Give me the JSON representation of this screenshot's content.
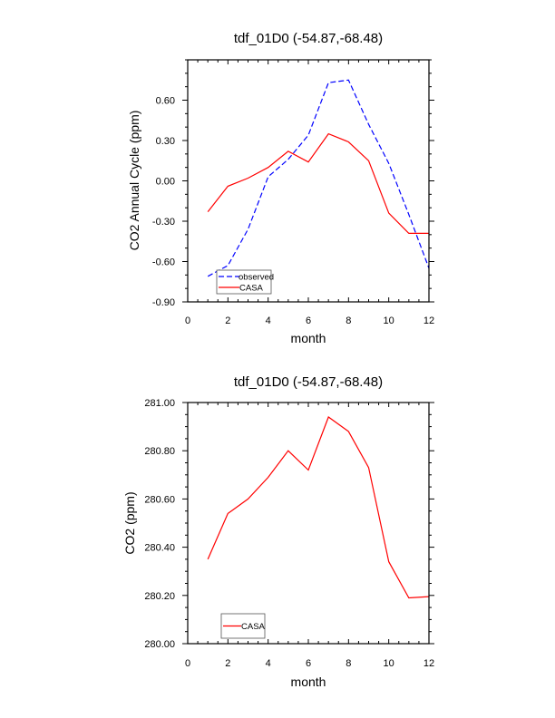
{
  "chart_data": [
    {
      "type": "line",
      "title": "tdf_01D0 (-54.87,-68.48)",
      "xlabel": "month",
      "ylabel": "CO2 Annual Cycle (ppm)",
      "xlim": [
        0,
        12
      ],
      "ylim": [
        -0.9,
        0.9
      ],
      "xticks": [
        0,
        2,
        4,
        6,
        8,
        10,
        12
      ],
      "xtick_labels": [
        "0",
        "2",
        "4",
        "6",
        "8",
        "10",
        "12"
      ],
      "yticks": [
        -0.9,
        -0.6,
        -0.3,
        0.0,
        0.3,
        0.6
      ],
      "ytick_labels": [
        "-0.90",
        "-0.60",
        "-0.30",
        "0.00",
        "0.30",
        "0.60"
      ],
      "x_minor_step": 0.5,
      "y_minor_step": 0.1,
      "grid": false,
      "legend_position": "bottom-left",
      "x": [
        1,
        2,
        3,
        4,
        5,
        6,
        7,
        8,
        9,
        10,
        11,
        12
      ],
      "series": [
        {
          "name": "observed",
          "color": "#0000ff",
          "dash": "dashed",
          "values": [
            -0.71,
            -0.63,
            -0.36,
            0.03,
            0.16,
            0.34,
            0.73,
            0.75,
            0.42,
            0.13,
            -0.25,
            -0.65
          ]
        },
        {
          "name": "CASA",
          "color": "#ff0000",
          "dash": "solid",
          "values": [
            -0.23,
            -0.04,
            0.02,
            0.1,
            0.22,
            0.14,
            0.35,
            0.29,
            0.15,
            -0.24,
            -0.39,
            -0.39
          ]
        }
      ]
    },
    {
      "type": "line",
      "title": "tdf_01D0 (-54.87,-68.48)",
      "xlabel": "month",
      "ylabel": "CO2 (ppm)",
      "xlim": [
        0,
        12
      ],
      "ylim": [
        280.0,
        281.0
      ],
      "xticks": [
        0,
        2,
        4,
        6,
        8,
        10,
        12
      ],
      "xtick_labels": [
        "0",
        "2",
        "4",
        "6",
        "8",
        "10",
        "12"
      ],
      "yticks": [
        280.0,
        280.2,
        280.4,
        280.6,
        280.8,
        281.0
      ],
      "ytick_labels": [
        "280.00",
        "280.20",
        "280.40",
        "280.60",
        "280.80",
        "281.00"
      ],
      "x_minor_step": 0.5,
      "y_minor_step": 0.05,
      "grid": false,
      "legend_position": "bottom-left",
      "x": [
        1,
        2,
        3,
        4,
        5,
        6,
        7,
        8,
        9,
        10,
        11,
        12
      ],
      "series": [
        {
          "name": "CASA",
          "color": "#ff0000",
          "dash": "solid",
          "values": [
            280.35,
            280.54,
            280.6,
            280.69,
            280.8,
            280.72,
            280.94,
            280.88,
            280.73,
            280.34,
            280.19,
            280.195
          ]
        }
      ]
    }
  ]
}
